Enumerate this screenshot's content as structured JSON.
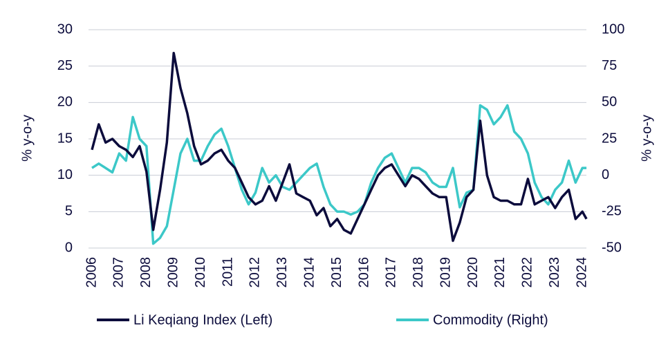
{
  "chart_data": {
    "type": "line",
    "y_label": "% y-o-y",
    "y2_label": "% y-o-y",
    "x": [
      2006,
      2006.25,
      2006.5,
      2006.75,
      2007,
      2007.25,
      2007.5,
      2007.75,
      2008,
      2008.25,
      2008.5,
      2008.75,
      2009,
      2009.25,
      2009.5,
      2009.75,
      2010,
      2010.25,
      2010.5,
      2010.75,
      2011,
      2011.25,
      2011.5,
      2011.75,
      2012,
      2012.25,
      2012.5,
      2012.75,
      2013,
      2013.25,
      2013.5,
      2013.75,
      2014,
      2014.25,
      2014.5,
      2014.75,
      2015,
      2015.25,
      2015.5,
      2015.75,
      2016,
      2016.25,
      2016.5,
      2016.75,
      2017,
      2017.25,
      2017.5,
      2017.75,
      2018,
      2018.25,
      2018.5,
      2018.75,
      2019,
      2019.25,
      2019.5,
      2019.75,
      2020,
      2020.25,
      2020.5,
      2020.75,
      2021,
      2021.25,
      2021.5,
      2021.75,
      2022,
      2022.25,
      2022.5,
      2022.75,
      2023,
      2023.25,
      2023.5,
      2023.75,
      2024,
      2024.15
    ],
    "series": [
      {
        "name": "Li Keqiang Index (Left)",
        "color": "#0c0c3c",
        "axis": "y",
        "values": [
          13.5,
          17,
          14.5,
          15,
          14,
          13.5,
          12.5,
          14,
          10.5,
          2.5,
          8,
          14.5,
          26.8,
          22,
          18.5,
          14,
          11.5,
          12,
          13,
          13.5,
          12,
          11,
          9,
          7,
          6,
          6.5,
          8.5,
          6.5,
          9,
          11.5,
          7.5,
          7,
          6.5,
          4.5,
          5.5,
          3,
          4,
          2.5,
          2,
          4,
          6,
          8,
          10,
          11,
          11.5,
          10,
          8.5,
          10,
          9.5,
          8.5,
          7.5,
          7,
          7,
          1,
          3.5,
          7,
          8,
          17.5,
          10,
          7,
          6.5,
          6.5,
          6,
          6,
          9.5,
          6,
          6.5,
          7,
          5.5,
          7,
          8,
          4,
          5,
          4
        ]
      },
      {
        "name": "Commodity (Right)",
        "color": "#3cc8c8",
        "axis": "y2",
        "values": [
          5,
          8,
          5,
          2,
          15,
          10,
          40,
          25,
          20,
          -47,
          -43,
          -35,
          -10,
          15,
          25,
          10,
          10,
          20,
          28,
          32,
          20,
          5,
          -10,
          -20,
          -12,
          5,
          -5,
          0,
          -8,
          -10,
          -5,
          0,
          5,
          8,
          -8,
          -20,
          -25,
          -25,
          -27,
          -25,
          -20,
          -5,
          5,
          12,
          15,
          5,
          -5,
          5,
          5,
          2,
          -5,
          -8,
          -8,
          5,
          -22,
          -12,
          -10,
          48,
          45,
          35,
          40,
          48,
          30,
          25,
          15,
          -5,
          -15,
          -20,
          -10,
          -5,
          10,
          -5,
          5,
          5
        ]
      }
    ],
    "xlim": [
      2006,
      2024.25
    ],
    "xticks": [
      2006,
      2007,
      2008,
      2009,
      2010,
      2011,
      2012,
      2013,
      2014,
      2015,
      2016,
      2017,
      2018,
      2019,
      2020,
      2021,
      2022,
      2023,
      2024
    ],
    "ylim": [
      0,
      30
    ],
    "yticks": [
      0,
      5,
      10,
      15,
      20,
      25,
      30
    ],
    "y2lim": [
      -50,
      100
    ],
    "y2ticks": [
      -50,
      -25,
      0,
      25,
      50,
      75,
      100
    ],
    "grid": true,
    "legend": "bottom"
  }
}
